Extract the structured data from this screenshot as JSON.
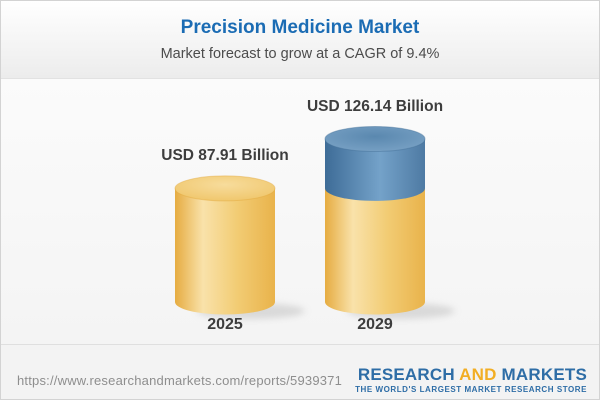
{
  "header": {
    "title": "Precision Medicine Market",
    "subtitle": "Market forecast to grow at a CAGR of 9.4%"
  },
  "chart_data": {
    "type": "bar",
    "variant": "3d-cylinder",
    "title": "Precision Medicine Market",
    "subtitle": "Market forecast to grow at a CAGR of 9.4%",
    "unit": "USD Billion",
    "cagr_percent": 9.4,
    "categories": [
      "2025",
      "2029"
    ],
    "values": [
      87.91,
      126.14
    ],
    "value_labels": [
      "USD 87.91 Billion",
      "USD 126.14 Billion"
    ],
    "segments_2029": {
      "base_gold": 87.91,
      "growth_increment_blue": 38.23
    },
    "legend": "none",
    "axes": "none (data labels above bars, year labels below bars)",
    "colors": {
      "gold_body": "#F0C567",
      "gold_body_highlight": "#F9E2AA",
      "gold_body_edge": "#E6AC41",
      "blue_body": "#5585AD",
      "blue_body_highlight": "#74A2C9",
      "blue_body_edge": "#3E6C97",
      "label_text": "#3D3D3D"
    }
  },
  "footer": {
    "url": "https://www.researchandmarkets.com/reports/5939371",
    "logo": {
      "word1": "RESEARCH",
      "word2": "AND",
      "word3": "MARKETS",
      "tagline": "THE WORLD'S LARGEST MARKET RESEARCH STORE"
    }
  }
}
